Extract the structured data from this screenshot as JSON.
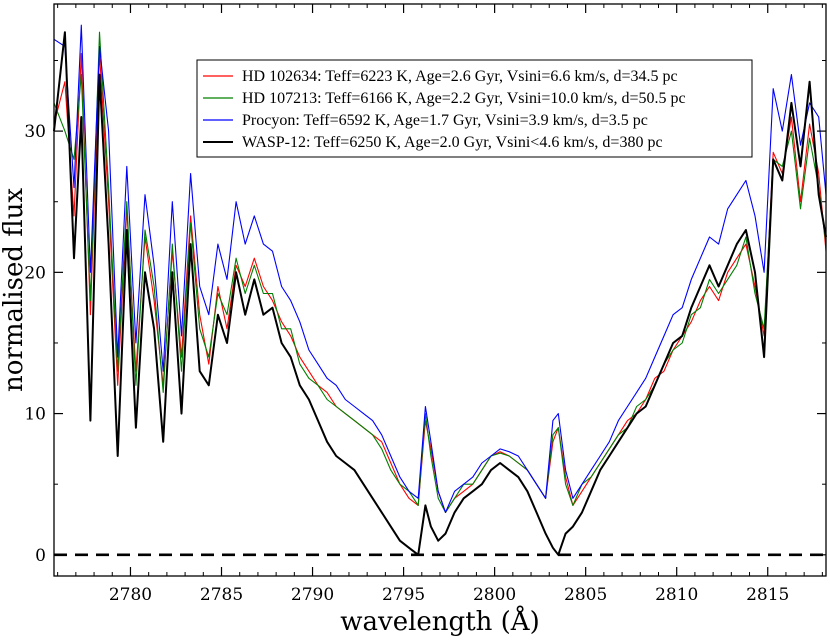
{
  "chart_data": {
    "type": "line",
    "title": "",
    "xlabel": "wavelength (Å)",
    "ylabel": "normalised flux",
    "xlim": [
      2775.8,
      2818.2
    ],
    "ylim": [
      -1.5,
      39
    ],
    "xticks": [
      2780,
      2785,
      2790,
      2795,
      2800,
      2805,
      2810,
      2815
    ],
    "yticks": [
      0,
      10,
      20,
      30
    ],
    "grid": false,
    "legend_position": "top-right",
    "reference_line": {
      "y": 0,
      "style": "dashed",
      "color": "#000000"
    },
    "series": [
      {
        "name": "HD 102634: Teff=6223 K, Age=2.6 Gyr, Vsini=6.6 km/s, d=34.5 pc",
        "color": "#ff0000",
        "x": [
          2775.8,
          2776.4,
          2776.9,
          2777.3,
          2777.8,
          2778.3,
          2778.8,
          2779.3,
          2779.8,
          2780.3,
          2780.8,
          2781.3,
          2781.8,
          2782.3,
          2782.8,
          2783.3,
          2783.8,
          2784.3,
          2784.8,
          2785.3,
          2785.8,
          2786.3,
          2786.8,
          2787.3,
          2787.8,
          2788.3,
          2788.8,
          2789.3,
          2789.8,
          2790.3,
          2790.8,
          2791.3,
          2791.8,
          2792.3,
          2792.8,
          2793.3,
          2793.8,
          2794.3,
          2794.8,
          2795.3,
          2795.8,
          2796.2,
          2796.5,
          2796.9,
          2797.3,
          2797.8,
          2798.3,
          2798.8,
          2799.3,
          2799.8,
          2800.3,
          2800.8,
          2801.3,
          2801.8,
          2802.3,
          2802.8,
          2803.2,
          2803.5,
          2803.9,
          2804.3,
          2804.8,
          2805.3,
          2805.8,
          2806.3,
          2806.8,
          2807.3,
          2807.8,
          2808.3,
          2808.8,
          2809.3,
          2809.8,
          2810.3,
          2810.8,
          2811.3,
          2811.8,
          2812.3,
          2812.8,
          2813.3,
          2813.8,
          2814.3,
          2814.8,
          2815.3,
          2815.8,
          2816.3,
          2816.8,
          2817.3,
          2817.8,
          2818.2
        ],
        "y": [
          30.5,
          33.5,
          24.0,
          35.5,
          17.0,
          35.5,
          25.0,
          12.0,
          24.5,
          13.0,
          22.5,
          18.0,
          12.0,
          21.5,
          14.0,
          24.0,
          17.0,
          13.5,
          19.0,
          16.0,
          20.5,
          19.0,
          21.0,
          19.0,
          18.0,
          16.5,
          15.5,
          14.0,
          13.0,
          12.0,
          11.5,
          10.5,
          10.0,
          9.5,
          9.0,
          8.5,
          8.0,
          6.5,
          5.0,
          4.0,
          3.5,
          9.5,
          7.5,
          4.5,
          3.0,
          4.0,
          4.5,
          5.0,
          6.0,
          7.0,
          7.3,
          7.0,
          6.5,
          6.0,
          5.0,
          4.0,
          8.0,
          9.0,
          5.5,
          3.5,
          4.5,
          5.5,
          6.5,
          7.5,
          8.5,
          9.5,
          10.0,
          11.0,
          12.5,
          13.0,
          14.5,
          15.5,
          16.5,
          18.0,
          19.0,
          18.0,
          20.0,
          21.0,
          22.0,
          19.0,
          15.5,
          28.5,
          27.0,
          31.0,
          25.0,
          30.5,
          27.0,
          21.5
        ]
      },
      {
        "name": "HD 107213: Teff=6166 K, Age=2.2 Gyr, Vsini=10.0 km/s, d=50.5 pc",
        "color": "#008000",
        "x": [
          2775.8,
          2776.4,
          2776.9,
          2777.3,
          2777.8,
          2778.3,
          2778.8,
          2779.3,
          2779.8,
          2780.3,
          2780.8,
          2781.3,
          2781.8,
          2782.3,
          2782.8,
          2783.3,
          2783.8,
          2784.3,
          2784.8,
          2785.3,
          2785.8,
          2786.3,
          2786.8,
          2787.3,
          2787.8,
          2788.3,
          2788.8,
          2789.3,
          2789.8,
          2790.3,
          2790.8,
          2791.3,
          2791.8,
          2792.3,
          2792.8,
          2793.3,
          2793.8,
          2794.3,
          2794.8,
          2795.3,
          2795.8,
          2796.2,
          2796.5,
          2796.9,
          2797.3,
          2797.8,
          2798.3,
          2798.8,
          2799.3,
          2799.8,
          2800.3,
          2800.8,
          2801.3,
          2801.8,
          2802.3,
          2802.8,
          2803.2,
          2803.5,
          2803.9,
          2804.3,
          2804.8,
          2805.3,
          2805.8,
          2806.3,
          2806.8,
          2807.3,
          2807.8,
          2808.3,
          2808.8,
          2809.3,
          2809.8,
          2810.3,
          2810.8,
          2811.3,
          2811.8,
          2812.3,
          2812.8,
          2813.3,
          2813.8,
          2814.3,
          2814.8,
          2815.3,
          2815.8,
          2816.3,
          2816.8,
          2817.3,
          2817.8,
          2818.2
        ],
        "y": [
          32.0,
          30.0,
          28.0,
          34.0,
          18.0,
          37.0,
          26.0,
          13.0,
          25.0,
          12.0,
          23.0,
          19.0,
          11.5,
          22.0,
          13.0,
          23.5,
          16.0,
          14.0,
          18.5,
          17.0,
          21.0,
          18.5,
          20.5,
          18.5,
          18.5,
          16.0,
          16.0,
          13.5,
          12.5,
          12.0,
          11.0,
          10.5,
          10.0,
          9.5,
          9.0,
          8.5,
          7.5,
          6.0,
          5.0,
          4.5,
          3.5,
          10.0,
          7.0,
          4.0,
          3.0,
          4.0,
          5.0,
          5.0,
          6.0,
          7.0,
          7.2,
          7.0,
          6.5,
          6.0,
          5.0,
          4.0,
          8.5,
          9.0,
          5.0,
          3.5,
          5.0,
          5.5,
          6.5,
          7.5,
          8.5,
          9.0,
          10.5,
          11.0,
          12.0,
          13.5,
          14.5,
          15.0,
          17.0,
          17.5,
          19.5,
          18.5,
          19.5,
          20.5,
          22.5,
          18.5,
          16.0,
          28.0,
          27.5,
          30.0,
          24.5,
          29.5,
          26.0,
          22.0
        ]
      },
      {
        "name": "Procyon: Teff=6592 K, Age=1.7 Gyr, Vsini=3.9 km/s, d=3.5 pc",
        "color": "#0000ff",
        "x": [
          2775.8,
          2776.4,
          2776.9,
          2777.3,
          2777.8,
          2778.3,
          2778.8,
          2779.3,
          2779.8,
          2780.3,
          2780.8,
          2781.3,
          2781.8,
          2782.3,
          2782.8,
          2783.3,
          2783.8,
          2784.3,
          2784.8,
          2785.3,
          2785.8,
          2786.3,
          2786.8,
          2787.3,
          2787.8,
          2788.3,
          2788.8,
          2789.3,
          2789.8,
          2790.3,
          2790.8,
          2791.3,
          2791.8,
          2792.3,
          2792.8,
          2793.3,
          2793.8,
          2794.3,
          2794.8,
          2795.3,
          2795.8,
          2796.2,
          2796.5,
          2796.9,
          2797.3,
          2797.8,
          2798.3,
          2798.8,
          2799.3,
          2799.8,
          2800.3,
          2800.8,
          2801.3,
          2801.8,
          2802.3,
          2802.8,
          2803.2,
          2803.5,
          2803.9,
          2804.3,
          2804.8,
          2805.3,
          2805.8,
          2806.3,
          2806.8,
          2807.3,
          2807.8,
          2808.3,
          2808.8,
          2809.3,
          2809.8,
          2810.3,
          2810.8,
          2811.3,
          2811.8,
          2812.3,
          2812.8,
          2813.3,
          2813.8,
          2814.3,
          2814.8,
          2815.3,
          2815.8,
          2816.3,
          2816.8,
          2817.3,
          2817.8,
          2818.2
        ],
        "y": [
          36.5,
          36.0,
          26.0,
          37.5,
          20.0,
          36.0,
          30.0,
          14.0,
          27.5,
          15.0,
          25.5,
          20.5,
          13.0,
          25.0,
          15.5,
          27.0,
          19.0,
          17.0,
          22.0,
          19.5,
          25.0,
          22.0,
          24.0,
          22.0,
          21.5,
          19.0,
          18.0,
          16.5,
          14.5,
          13.5,
          12.5,
          12.0,
          11.0,
          10.5,
          10.0,
          9.5,
          8.5,
          7.0,
          5.5,
          4.5,
          4.0,
          10.5,
          8.0,
          4.5,
          3.0,
          4.5,
          5.0,
          5.5,
          6.5,
          7.0,
          7.5,
          7.3,
          7.0,
          6.0,
          5.0,
          4.0,
          9.5,
          10.0,
          6.0,
          4.0,
          5.0,
          6.0,
          7.0,
          8.0,
          9.5,
          10.5,
          11.5,
          12.5,
          14.0,
          15.5,
          17.0,
          17.5,
          19.5,
          21.0,
          22.5,
          22.0,
          24.5,
          25.5,
          26.5,
          24.0,
          20.0,
          33.0,
          30.0,
          34.0,
          29.0,
          32.0,
          31.0,
          25.5
        ]
      },
      {
        "name": "WASP-12: Teff=6250 K, Age=2.0 Gyr, Vsini<4.6 km/s, d=380 pc",
        "color": "#000000",
        "x": [
          2775.8,
          2776.4,
          2776.9,
          2777.3,
          2777.8,
          2778.3,
          2778.8,
          2779.3,
          2779.8,
          2780.3,
          2780.8,
          2781.3,
          2781.8,
          2782.3,
          2782.8,
          2783.3,
          2783.8,
          2784.3,
          2784.8,
          2785.3,
          2785.8,
          2786.3,
          2786.8,
          2787.3,
          2787.8,
          2788.3,
          2788.8,
          2789.3,
          2789.8,
          2790.3,
          2790.8,
          2791.3,
          2791.8,
          2792.3,
          2792.8,
          2793.3,
          2793.8,
          2794.3,
          2794.8,
          2795.3,
          2795.8,
          2796.2,
          2796.5,
          2796.9,
          2797.3,
          2797.8,
          2798.3,
          2798.8,
          2799.3,
          2799.8,
          2800.3,
          2800.8,
          2801.3,
          2801.8,
          2802.3,
          2802.8,
          2803.2,
          2803.5,
          2803.9,
          2804.3,
          2804.8,
          2805.3,
          2805.8,
          2806.3,
          2806.8,
          2807.3,
          2807.8,
          2808.3,
          2808.8,
          2809.3,
          2809.8,
          2810.3,
          2810.8,
          2811.3,
          2811.8,
          2812.3,
          2812.8,
          2813.3,
          2813.8,
          2814.3,
          2814.8,
          2815.3,
          2815.8,
          2816.3,
          2816.8,
          2817.3,
          2817.8,
          2818.2
        ],
        "y": [
          30.0,
          37.0,
          21.0,
          31.0,
          9.5,
          34.0,
          22.0,
          7.0,
          23.0,
          9.0,
          20.0,
          16.0,
          8.0,
          20.0,
          10.0,
          22.0,
          13.0,
          12.0,
          17.0,
          15.0,
          20.0,
          17.0,
          19.5,
          17.0,
          17.5,
          15.0,
          14.0,
          12.0,
          11.0,
          9.5,
          8.0,
          7.0,
          6.5,
          6.0,
          5.0,
          4.0,
          3.0,
          2.0,
          1.0,
          0.5,
          0.0,
          3.5,
          2.0,
          1.0,
          1.5,
          3.0,
          4.0,
          4.5,
          5.0,
          6.0,
          6.5,
          6.0,
          5.5,
          4.5,
          3.0,
          1.5,
          0.5,
          0.0,
          1.5,
          2.0,
          3.0,
          4.5,
          6.0,
          7.0,
          8.0,
          9.0,
          10.0,
          10.5,
          12.0,
          13.5,
          15.0,
          15.5,
          17.5,
          19.0,
          20.5,
          19.0,
          20.5,
          22.0,
          23.0,
          20.0,
          14.0,
          28.0,
          26.5,
          32.0,
          27.5,
          33.5,
          25.5,
          22.5
        ]
      }
    ]
  }
}
